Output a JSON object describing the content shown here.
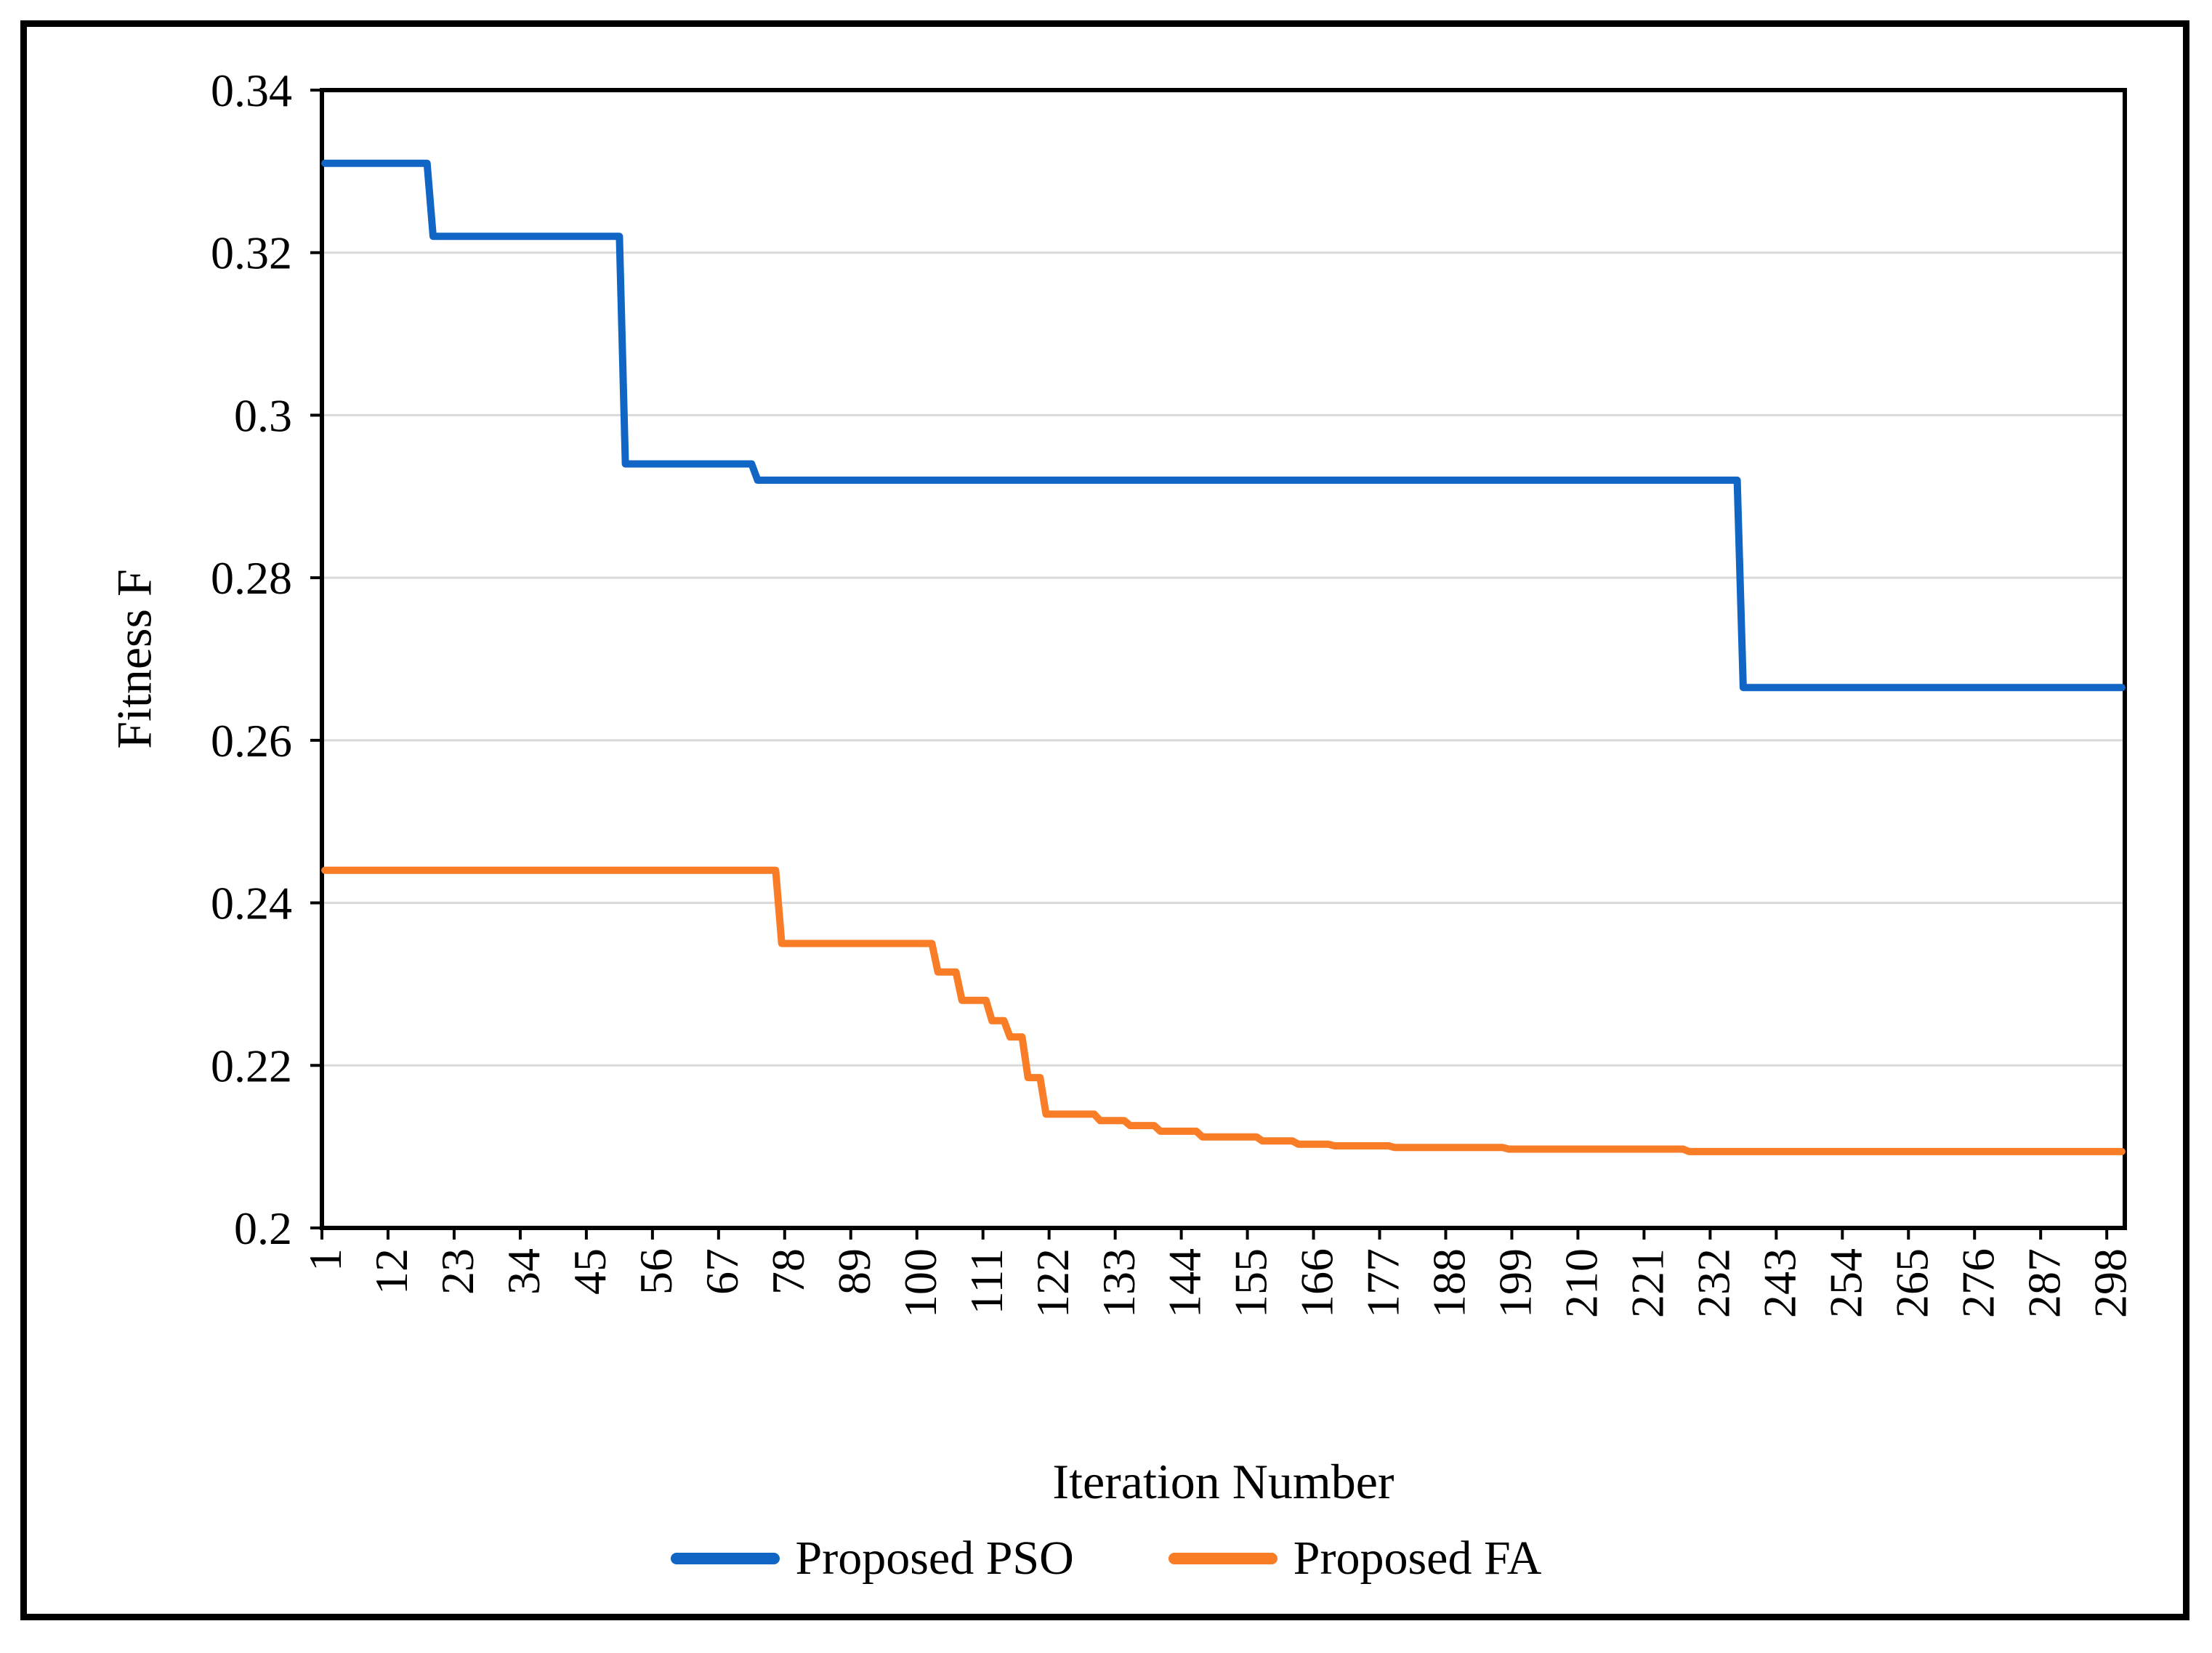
{
  "chart_data": {
    "type": "line",
    "title": "",
    "xlabel": "Iteration Number",
    "ylabel": "Fitness F",
    "x_range": [
      1,
      300
    ],
    "ylim": [
      0.2,
      0.34
    ],
    "grid_on": true,
    "grid_color": "#D9D9D9",
    "axis_color": "#000000",
    "legend_position": "bottom",
    "y_ticks": [
      {
        "value": 0.34,
        "label": "0.34"
      },
      {
        "value": 0.32,
        "label": "0.32"
      },
      {
        "value": 0.3,
        "label": "0.3"
      },
      {
        "value": 0.28,
        "label": "0.28"
      },
      {
        "value": 0.26,
        "label": "0.26"
      },
      {
        "value": 0.24,
        "label": "0.24"
      },
      {
        "value": 0.22,
        "label": "0.22"
      },
      {
        "value": 0.2,
        "label": "0.2"
      }
    ],
    "gridline_values": [
      0.32,
      0.3,
      0.28,
      0.26,
      0.24,
      0.22
    ],
    "x_tick_values": [
      1,
      12,
      23,
      34,
      45,
      56,
      67,
      78,
      89,
      100,
      111,
      122,
      133,
      144,
      155,
      166,
      177,
      188,
      199,
      210,
      221,
      232,
      243,
      254,
      265,
      276,
      287,
      298
    ],
    "x_tick_interval": 11,
    "series": [
      {
        "name": "Proposed PSO",
        "color": "#1166C5",
        "segments": [
          {
            "from": 1,
            "to": 18,
            "value": 0.331
          },
          {
            "from": 19,
            "to": 50,
            "value": 0.322
          },
          {
            "from": 51,
            "to": 72,
            "value": 0.294
          },
          {
            "from": 73,
            "to": 236,
            "value": 0.292
          },
          {
            "from": 237,
            "to": 300,
            "value": 0.2665
          }
        ]
      },
      {
        "name": "Proposed FA",
        "color": "#F97D26",
        "segments": [
          {
            "from": 1,
            "to": 76,
            "value": 0.244
          },
          {
            "from": 77,
            "to": 102,
            "value": 0.235
          },
          {
            "from": 103,
            "to": 106,
            "value": 0.2315
          },
          {
            "from": 107,
            "to": 111,
            "value": 0.228
          },
          {
            "from": 112,
            "to": 114,
            "value": 0.2255
          },
          {
            "from": 115,
            "to": 117,
            "value": 0.2235
          },
          {
            "from": 118,
            "to": 120,
            "value": 0.2185
          },
          {
            "from": 121,
            "to": 129,
            "value": 0.214
          },
          {
            "from": 130,
            "to": 134,
            "value": 0.2132
          },
          {
            "from": 135,
            "to": 139,
            "value": 0.2126
          },
          {
            "from": 140,
            "to": 146,
            "value": 0.2119
          },
          {
            "from": 147,
            "to": 156,
            "value": 0.2112
          },
          {
            "from": 157,
            "to": 162,
            "value": 0.2107
          },
          {
            "from": 163,
            "to": 168,
            "value": 0.2103
          },
          {
            "from": 169,
            "to": 178,
            "value": 0.2101
          },
          {
            "from": 179,
            "to": 197,
            "value": 0.2099
          },
          {
            "from": 198,
            "to": 227,
            "value": 0.2097
          },
          {
            "from": 228,
            "to": 300,
            "value": 0.2094
          }
        ]
      }
    ]
  }
}
